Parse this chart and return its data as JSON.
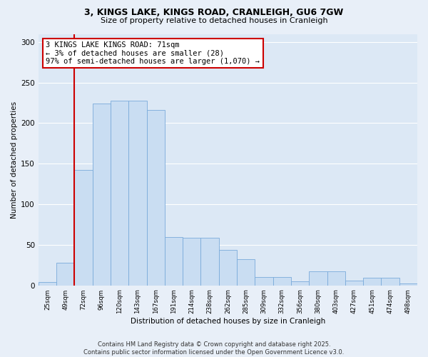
{
  "title_line1": "3, KINGS LAKE, KINGS ROAD, CRANLEIGH, GU6 7GW",
  "title_line2": "Size of property relative to detached houses in Cranleigh",
  "xlabel": "Distribution of detached houses by size in Cranleigh",
  "ylabel": "Number of detached properties",
  "bar_color": "#c9ddf2",
  "bar_edge_color": "#7aabda",
  "axis_bg": "#dce8f5",
  "fig_bg": "#e8eff8",
  "grid_color": "#ffffff",
  "vline_color": "#cc0000",
  "categories": [
    "25sqm",
    "49sqm",
    "72sqm",
    "96sqm",
    "120sqm",
    "143sqm",
    "167sqm",
    "191sqm",
    "214sqm",
    "238sqm",
    "262sqm",
    "285sqm",
    "309sqm",
    "332sqm",
    "356sqm",
    "380sqm",
    "403sqm",
    "427sqm",
    "451sqm",
    "474sqm",
    "498sqm"
  ],
  "heights": [
    4,
    28,
    142,
    224,
    228,
    228,
    216,
    60,
    59,
    59,
    44,
    32,
    10,
    10,
    5,
    17,
    17,
    6,
    9,
    9,
    2
  ],
  "ylim": [
    0,
    310
  ],
  "yticks": [
    0,
    50,
    100,
    150,
    200,
    250,
    300
  ],
  "annotation_text": "3 KINGS LAKE KINGS ROAD: 71sqm\n← 3% of detached houses are smaller (28)\n97% of semi-detached houses are larger (1,070) →",
  "vline_x_idx": 2.0,
  "footer_text": "Contains HM Land Registry data © Crown copyright and database right 2025.\nContains public sector information licensed under the Open Government Licence v3.0."
}
